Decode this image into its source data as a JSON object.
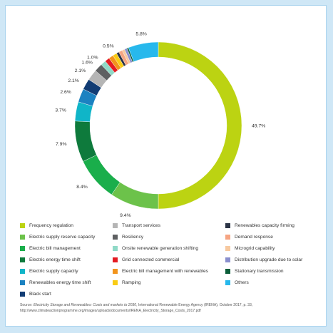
{
  "chart_data": {
    "type": "pie",
    "donut": true,
    "title": "",
    "series": [
      {
        "name": "Frequency regulation",
        "value": 49.7,
        "label": "49.7%",
        "color": "#bcd312"
      },
      {
        "name": "Electric supply reserve capacity",
        "value": 9.4,
        "label": "9.4%",
        "color": "#6cc24a"
      },
      {
        "name": "Electric bill management",
        "value": 8.4,
        "label": "8.4%",
        "color": "#1aae4b"
      },
      {
        "name": "Electric energy time shift",
        "value": 7.9,
        "label": "7.9%",
        "color": "#0e7a3c"
      },
      {
        "name": "Electric supply capacity",
        "value": 3.7,
        "label": "3.7%",
        "color": "#10b5c8"
      },
      {
        "name": "Renewables energy time shift",
        "value": 2.6,
        "label": "2.6%",
        "color": "#1b82c1"
      },
      {
        "name": "Black start",
        "value": 2.1,
        "label": "2.1%",
        "color": "#113c74"
      },
      {
        "name": "Transport services",
        "value": 2.1,
        "label": "2.1%",
        "color": "#b5b5b5"
      },
      {
        "name": "Resiliency",
        "value": 1.6,
        "label": "1.6%",
        "color": "#5e6062"
      },
      {
        "name": "Onsite renewable generation shifting",
        "value": 1.0,
        "label": "1.0%",
        "color": "#8fd9c7"
      },
      {
        "name": "Grid connected commercial",
        "value": 0.9,
        "label": "",
        "color": "#e41b23"
      },
      {
        "name": "Electric bill management with renewables",
        "value": 0.9,
        "label": "",
        "color": "#f2941c"
      },
      {
        "name": "Ramping",
        "value": 0.8,
        "label": "",
        "color": "#f9cc14"
      },
      {
        "name": "Renewables capacity firming",
        "value": 0.5,
        "label": "0.5%",
        "color": "#2c3446"
      },
      {
        "name": "Demand response",
        "value": 0.7,
        "label": "",
        "color": "#f6a583"
      },
      {
        "name": "Microgrid capability",
        "value": 0.5,
        "label": "",
        "color": "#f7c9a0"
      },
      {
        "name": "Distribution upgrade due to solar",
        "value": 0.5,
        "label": "",
        "color": "#8a8fce"
      },
      {
        "name": "Stationary transmission",
        "value": 0.3,
        "label": "",
        "color": "#0b5e39"
      },
      {
        "name": "Others",
        "value": 5.8,
        "label": "5.8%",
        "color": "#27b8ec"
      }
    ],
    "legend_placement": "bottom",
    "legend_order": [
      "Frequency regulation",
      "Transport services",
      "Renewables capacity firming",
      "Electric supply reserve capacity",
      "Resiliency",
      "Demand response",
      "Electric bill management",
      "Onsite renewable generation shifting",
      "Microgrid capability",
      "Electric energy time shift",
      "Grid connected commercial",
      "Distribution upgrade due to solar",
      "Electric supply capacity",
      "Electric bill management with renewables",
      "Stationary transmission",
      "Renewables energy time shift",
      "Ramping",
      "Others",
      "Black start"
    ]
  },
  "source": {
    "prefix": "Source: ",
    "title": "Electricity Storage and Renewables: Costs and markets to 2030",
    "rest": ", International Renewable Energy Agency (IRENA), October 2017, p. 33,",
    "url": "http://www.climateactionprogramme.org/images/uploads/documents/IRENA_Electricity_Storage_Costs_2017.pdf"
  }
}
